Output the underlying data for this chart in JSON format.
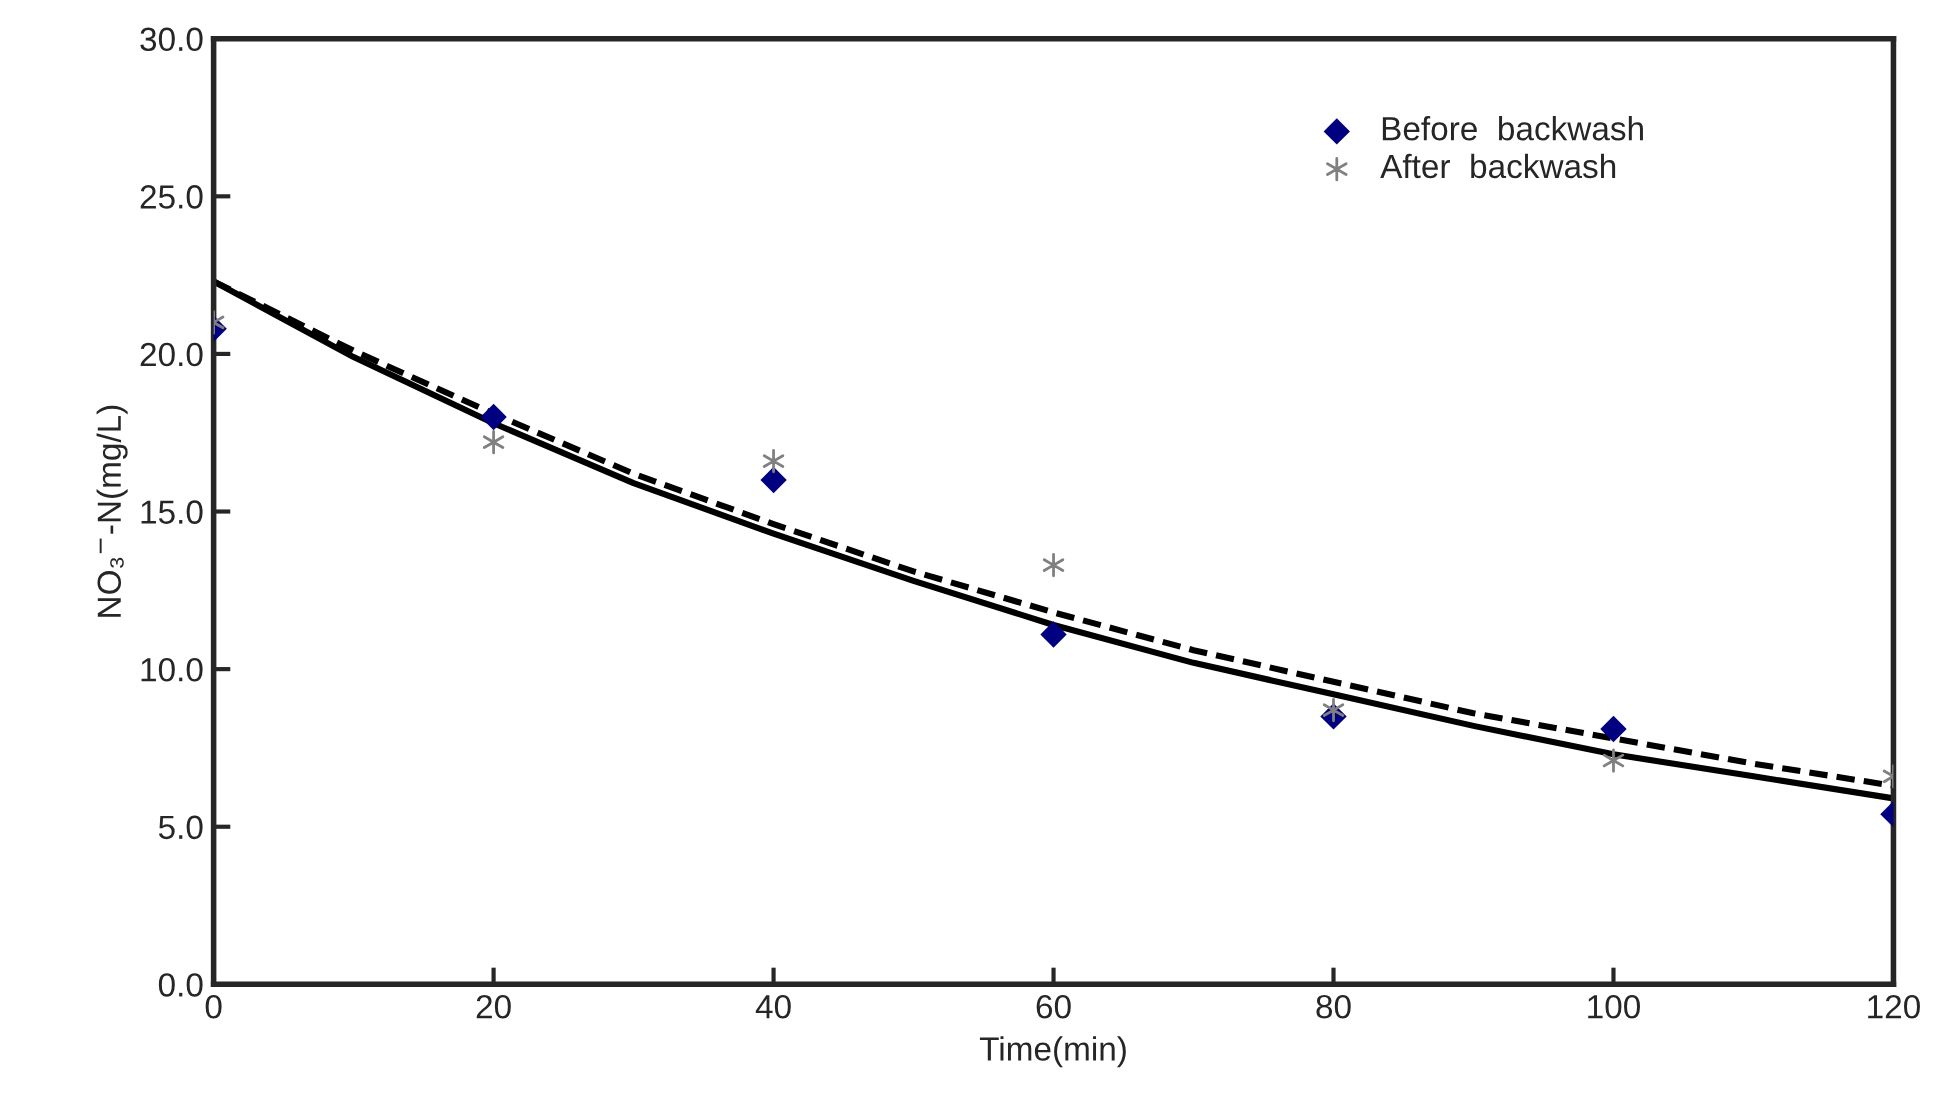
{
  "chart_data": {
    "type": "scatter",
    "xlabel": "Time(min)",
    "ylabel": "NO₃$^{−}$-N(mg/L)",
    "x": [
      0,
      20,
      40,
      60,
      80,
      100,
      120
    ],
    "series": [
      {
        "name": "Before  backwash",
        "color": "#000080",
        "marker": "diamond",
        "values": [
          20.8,
          18.0,
          16.0,
          11.1,
          8.5,
          8.1,
          5.4
        ]
      },
      {
        "name": "After  backwash",
        "color": "#808080",
        "marker": "cross",
        "values": [
          21.0,
          17.2,
          16.6,
          13.3,
          8.7,
          7.1,
          6.6
        ]
      },
      {
        "type": "line",
        "color": "#000000",
        "line_style": "solid",
        "marker": "none",
        "x": [
          0,
          10,
          20,
          30,
          40,
          50,
          60,
          70,
          80,
          90,
          100,
          110,
          120
        ],
        "values": [
          22.3,
          19.9,
          17.8,
          15.9,
          14.3,
          12.8,
          11.4,
          10.2,
          9.2,
          8.2,
          7.3,
          6.6,
          5.9
        ]
      },
      {
        "type": "line",
        "color": "#000000",
        "line_style": "dashed",
        "marker": "none",
        "x": [
          0,
          10,
          20,
          30,
          40,
          50,
          60,
          70,
          80,
          90,
          100,
          110,
          120
        ],
        "values": [
          22.3,
          20.1,
          18.1,
          16.2,
          14.6,
          13.1,
          11.8,
          10.6,
          9.6,
          8.6,
          7.8,
          7.0,
          6.3
        ]
      }
    ],
    "xlim": [
      0,
      120
    ],
    "xticks": [
      0,
      20,
      40,
      60,
      80,
      100,
      120
    ],
    "ylim": [
      0,
      30
    ],
    "yticks": [
      {
        "value": 0,
        "label": "0.0"
      },
      {
        "value": 5,
        "label": "5.0"
      },
      {
        "value": 10,
        "label": "10.0"
      },
      {
        "value": 15,
        "label": "15.0"
      },
      {
        "value": 20,
        "label": "20.0"
      },
      {
        "value": 25,
        "label": "25.0"
      },
      {
        "value": 30,
        "label": "30.0"
      }
    ],
    "grid": false,
    "legend": "top right"
  }
}
